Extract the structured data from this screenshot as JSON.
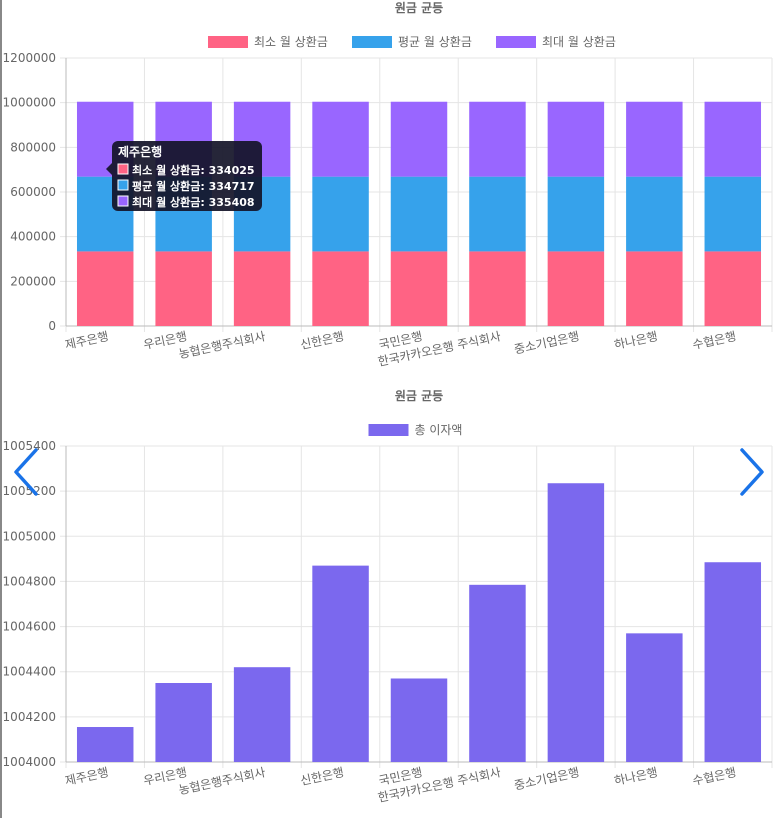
{
  "colors": {
    "min": "#ff6384",
    "avg": "#36a2eb",
    "max": "#9966ff",
    "total": "#7b68ee",
    "grid": "#e5e5e5",
    "text": "#666666",
    "arrow": "#1a73e8",
    "tooltip_bg": "#141428"
  },
  "icons": {
    "prev": "chevron-left-icon",
    "next": "chevron-right-icon"
  },
  "chart_data": [
    {
      "type": "bar",
      "stacked": true,
      "title": "원금 균등",
      "categories": [
        "제주은행",
        "우리은행",
        "농협은행주식회사",
        "신한은행",
        "국민은행",
        "한국카카오은행 주식회사",
        "중소기업은행",
        "하나은행",
        "수협은행"
      ],
      "series": [
        {
          "name": "최소 월 상환금",
          "color": "#ff6384",
          "values": [
            334025,
            334025,
            334025,
            334025,
            334025,
            334025,
            334025,
            334025,
            334025
          ]
        },
        {
          "name": "평균 월 상환금",
          "color": "#36a2eb",
          "values": [
            334717,
            334717,
            334717,
            334717,
            334717,
            334717,
            334717,
            334717,
            334717
          ]
        },
        {
          "name": "최대 월 상환금",
          "color": "#9966ff",
          "values": [
            335408,
            335408,
            335408,
            335408,
            335408,
            335408,
            335408,
            335408,
            335408
          ]
        }
      ],
      "ylim": [
        0,
        1200000
      ],
      "yticks": [
        0,
        200000,
        400000,
        600000,
        800000,
        1000000,
        1200000
      ],
      "grid": true,
      "legend": "top",
      "tooltip": {
        "title": "제주은행",
        "lines": [
          "최소 월 상환금: 334025",
          "평균 월 상환금: 334717",
          "최대 월 상환금: 335408"
        ]
      }
    },
    {
      "type": "bar",
      "title": "원금 균등",
      "categories": [
        "제주은행",
        "우리은행",
        "농협은행주식회사",
        "신한은행",
        "국민은행",
        "한국카카오은행 주식회사",
        "중소기업은행",
        "하나은행",
        "수협은행"
      ],
      "series": [
        {
          "name": "총 이자액",
          "color": "#7b68ee",
          "values": [
            1004155,
            1004350,
            1004420,
            1004870,
            1004370,
            1004785,
            1005235,
            1004570,
            1004885
          ]
        }
      ],
      "ylim": [
        1004000,
        1005400
      ],
      "yticks": [
        1004000,
        1004200,
        1004400,
        1004600,
        1004800,
        1005000,
        1005200,
        1005400
      ],
      "grid": true,
      "legend": "top"
    }
  ]
}
